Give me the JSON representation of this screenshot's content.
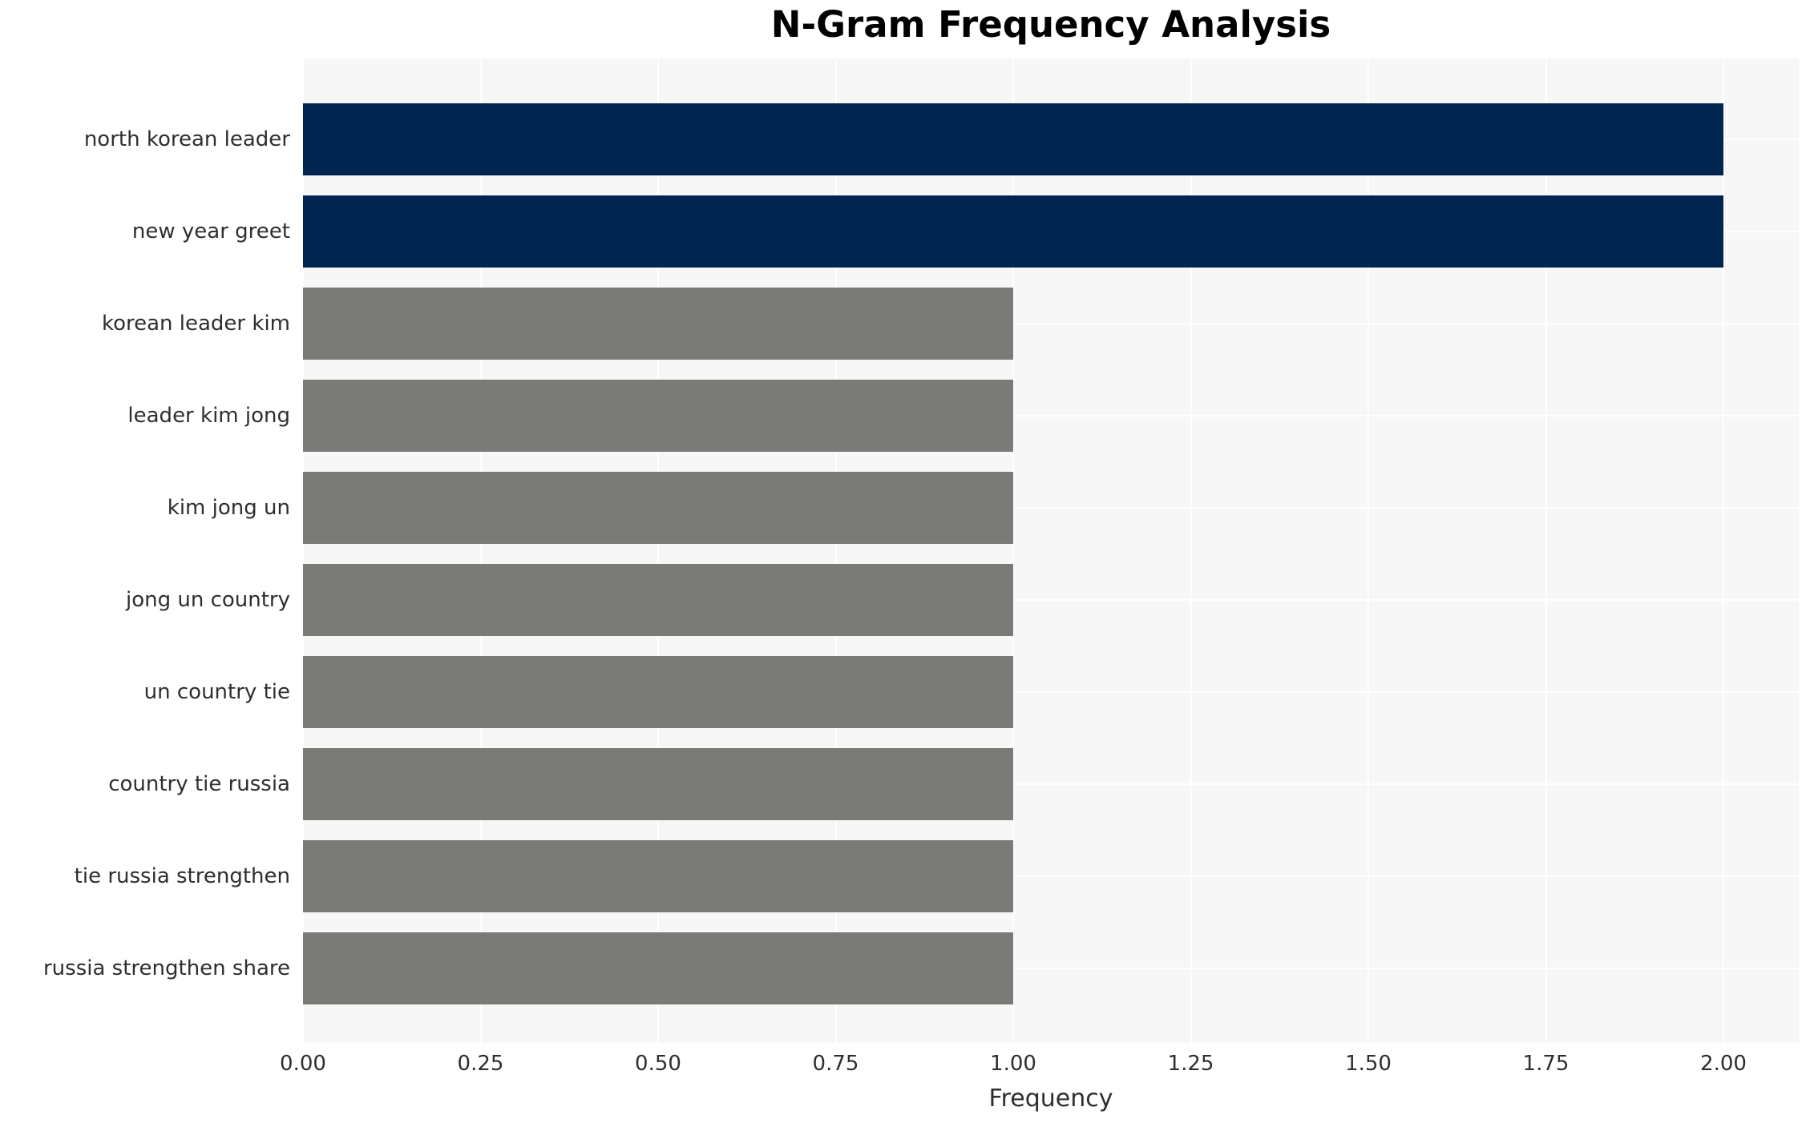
{
  "chart_data": {
    "type": "bar",
    "orientation": "horizontal",
    "title": "N-Gram Frequency Analysis",
    "xlabel": "Frequency",
    "ylabel": "",
    "categories": [
      "north korean leader",
      "new year greet",
      "korean leader kim",
      "leader kim jong",
      "kim jong un",
      "jong un country",
      "un country tie",
      "country tie russia",
      "tie russia strengthen",
      "russia strengthen share"
    ],
    "values": [
      2,
      2,
      1,
      1,
      1,
      1,
      1,
      1,
      1,
      1
    ],
    "bar_colors": [
      "#00254e",
      "#00254e",
      "#7a7a77",
      "#7a7a77",
      "#7a7a77",
      "#7a7a77",
      "#7a7a77",
      "#7a7a77",
      "#7a7a77",
      "#7a7a77"
    ],
    "x_tick_values": [
      0,
      0.25,
      0.5,
      0.75,
      1.0,
      1.25,
      1.5,
      1.75,
      2.0
    ],
    "x_tick_labels": [
      "0.00",
      "0.25",
      "0.50",
      "0.75",
      "1.00",
      "1.25",
      "1.50",
      "1.75",
      "2.00"
    ],
    "xlim": [
      0,
      2.106
    ],
    "grid": true,
    "legend_position": "none",
    "colors": {
      "highlight_bar": "#00254e",
      "regular_bar": "#7a7a77",
      "plot_background": "#f7f7f7",
      "figure_background": "#ffffff",
      "grid_line": "#ffffff",
      "title_text": "#000000",
      "label_text": "#2e2e2e"
    }
  }
}
